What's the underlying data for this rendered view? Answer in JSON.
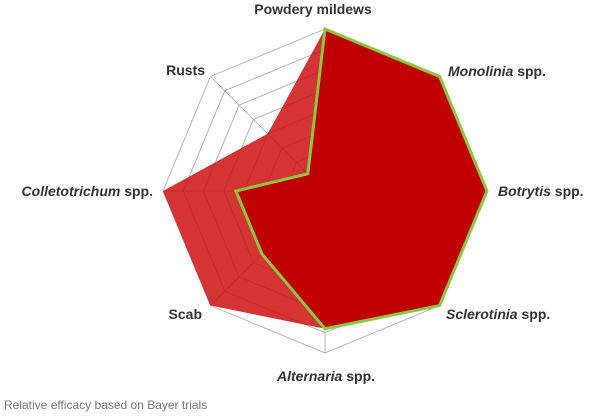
{
  "chart_data": {
    "type": "radar",
    "axes": [
      {
        "italic": "",
        "rest": "Powdery mildews"
      },
      {
        "italic": "Monolinia",
        "rest": " spp."
      },
      {
        "italic": "Botrytis",
        "rest": " spp."
      },
      {
        "italic": "Sclerotinia",
        "rest": " spp."
      },
      {
        "italic": "Alternaria",
        "rest": " spp."
      },
      {
        "italic": "",
        "rest": "Scab"
      },
      {
        "italic": "Colletotrichum",
        "rest": " spp."
      },
      {
        "italic": "",
        "rest": "Rusts"
      }
    ],
    "series": [
      {
        "values": [
          10,
          10,
          10,
          10,
          8.5,
          10,
          10,
          5
        ],
        "color": "#cc1111"
      },
      {
        "values": [
          10,
          10,
          10,
          10,
          8.5,
          5.5,
          5.5,
          1.5
        ],
        "color": "#c00000",
        "stroke": "#8dc63f"
      }
    ],
    "rmax": 10,
    "rings": 8,
    "grid": true
  },
  "footnote": "Relative efficacy based on Bayer trials"
}
